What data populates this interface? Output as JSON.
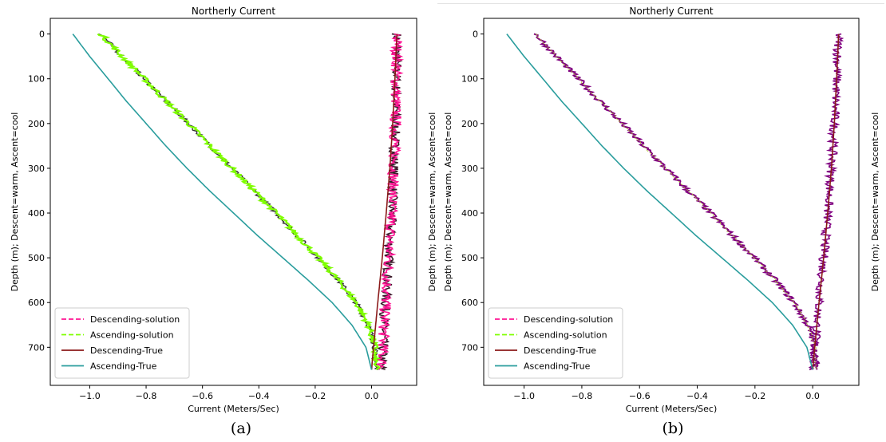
{
  "chart_data": [
    {
      "type": "line",
      "title": "Northerly Current",
      "xlabel": "Current (Meters/Sec)",
      "ylabel": "Depth (m); Descent=warm, Ascent=cool",
      "right_label": "Depth (m); Descent=warm, Ascent=cool",
      "xlim": [
        -1.14,
        0.16
      ],
      "ylim": [
        785,
        -35
      ],
      "y_inverted": true,
      "xticks": [
        -1.0,
        -0.8,
        -0.6,
        -0.4,
        -0.2,
        0.0
      ],
      "xtick_labels": [
        "−1.0",
        "−0.8",
        "−0.6",
        "−0.4",
        "−0.2",
        "0.0"
      ],
      "yticks": [
        0,
        100,
        200,
        300,
        400,
        500,
        600,
        700
      ],
      "ytick_labels": [
        "0",
        "100",
        "200",
        "300",
        "400",
        "500",
        "600",
        "700"
      ],
      "legend_position": "lower-left",
      "grid": false,
      "series": [
        {
          "name": "Descending-solution",
          "color": "#ff1493",
          "style": "dashed",
          "noise": 0.012,
          "depth_points": [
            0,
            750
          ],
          "values": "see descending_true, jittered"
        },
        {
          "name": "Ascending-solution",
          "color": "#7fff00",
          "style": "dashed",
          "noise": 0.012,
          "values": "see ascending_true, jittered, slightly right"
        },
        {
          "name": "Descending-True",
          "color": "#8b1a1a",
          "style": "solid",
          "depth": [
            0,
            100,
            200,
            300,
            400,
            500,
            600,
            700,
            750
          ],
          "values": [
            0.09,
            0.083,
            0.075,
            0.065,
            0.052,
            0.038,
            0.022,
            0.007,
            0.0
          ]
        },
        {
          "name": "Ascending-True",
          "color": "#2a9d9d",
          "style": "solid",
          "depth": [
            0,
            50,
            100,
            150,
            200,
            250,
            300,
            350,
            400,
            450,
            500,
            550,
            600,
            650,
            700,
            750
          ],
          "values": [
            -1.06,
            -1.0,
            -0.935,
            -0.87,
            -0.8,
            -0.73,
            -0.655,
            -0.575,
            -0.49,
            -0.405,
            -0.315,
            -0.225,
            -0.14,
            -0.07,
            -0.02,
            0.0
          ]
        }
      ]
    },
    {
      "type": "line",
      "title": "Northerly Current",
      "xlabel": "Current (Meters/Sec)",
      "ylabel": "Depth (m); Descent=warm, Ascent=cool",
      "right_label": "Depth (m); Descent=warm, Ascent=cool",
      "xlim": [
        -1.14,
        0.16
      ],
      "ylim": [
        785,
        -35
      ],
      "y_inverted": true,
      "xticks": [
        -1.0,
        -0.8,
        -0.6,
        -0.4,
        -0.2,
        0.0
      ],
      "xtick_labels": [
        "−1.0",
        "−0.8",
        "−0.6",
        "−0.4",
        "−0.2",
        "0.0"
      ],
      "yticks": [
        0,
        100,
        200,
        300,
        400,
        500,
        600,
        700
      ],
      "ytick_labels": [
        "0",
        "100",
        "200",
        "300",
        "400",
        "500",
        "600",
        "700"
      ],
      "legend_position": "lower-left",
      "grid": false,
      "series": [
        {
          "name": "Descending-solution",
          "color": "#ff1493",
          "style": "dashed"
        },
        {
          "name": "Ascending-solution",
          "color": "#7fff00",
          "style": "dashed"
        },
        {
          "name": "Descending-True",
          "color": "#8b1a1a",
          "style": "solid",
          "depth": [
            0,
            100,
            200,
            300,
            400,
            500,
            600,
            700,
            750
          ],
          "values": [
            0.09,
            0.083,
            0.075,
            0.065,
            0.052,
            0.038,
            0.022,
            0.007,
            0.0
          ]
        },
        {
          "name": "Ascending-True",
          "color": "#2a9d9d",
          "style": "solid",
          "depth": [
            0,
            50,
            100,
            150,
            200,
            250,
            300,
            350,
            400,
            450,
            500,
            550,
            600,
            650,
            700,
            750
          ],
          "values": [
            -1.06,
            -1.0,
            -0.935,
            -0.87,
            -0.8,
            -0.73,
            -0.655,
            -0.575,
            -0.49,
            -0.405,
            -0.315,
            -0.225,
            -0.14,
            -0.07,
            -0.02,
            0.0
          ]
        }
      ],
      "purple_overlay": "#800080"
    }
  ],
  "captions": {
    "a": "(a)",
    "b": "(b)"
  }
}
